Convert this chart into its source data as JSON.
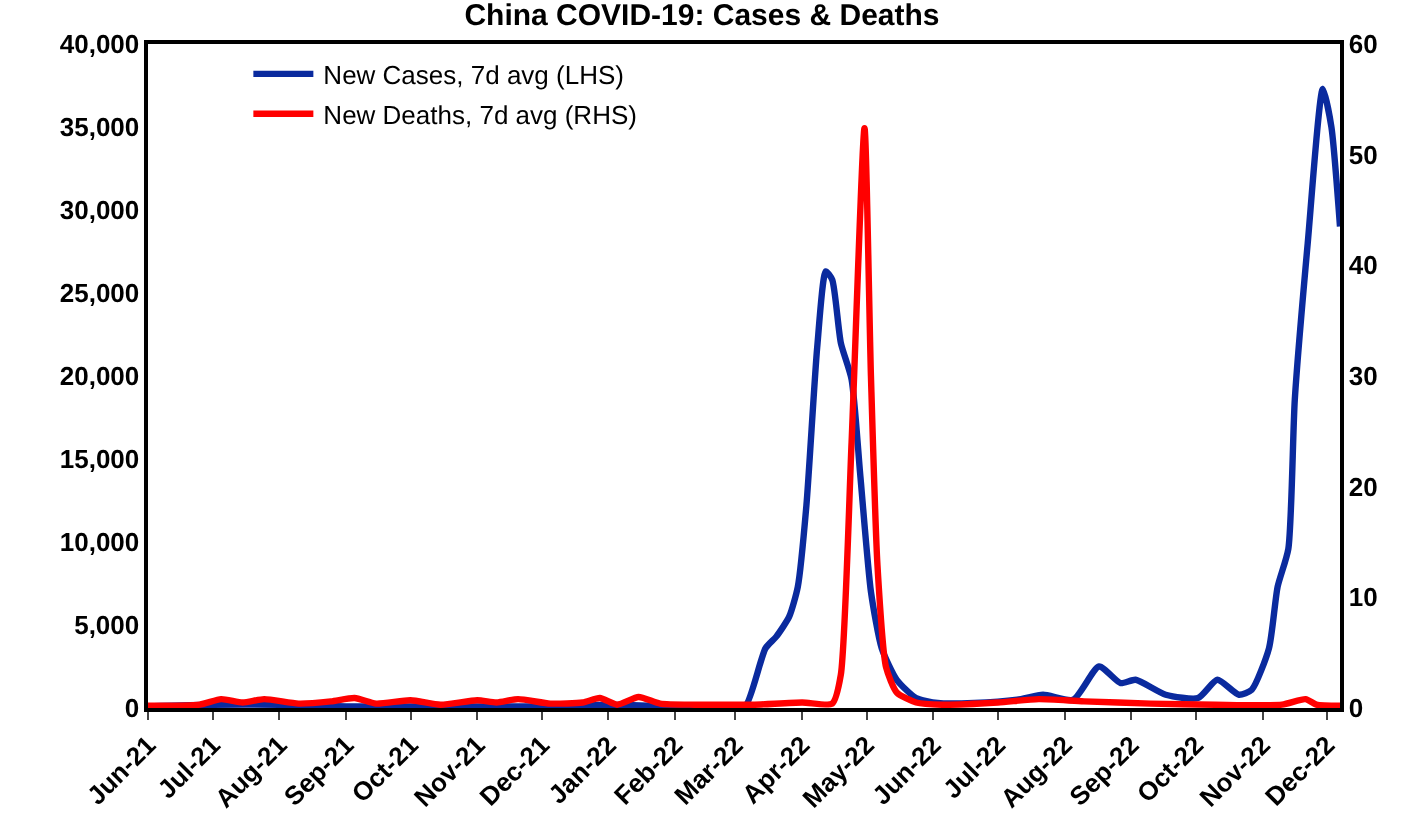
{
  "chart_data": {
    "type": "line",
    "title": "China COVID-19: Cases & Deaths",
    "series": [
      {
        "name": "New Cases, 7d avg (LHS)",
        "color": "#0a2a9e",
        "axis": "y",
        "x": [
          "2021-06-01",
          "2021-07-01",
          "2021-08-01",
          "2021-09-01",
          "2021-10-01",
          "2021-11-01",
          "2021-12-01",
          "2022-01-01",
          "2022-02-01",
          "2022-03-01",
          "2022-03-06",
          "2022-03-15",
          "2022-03-20",
          "2022-03-26",
          "2022-03-30",
          "2022-04-03",
          "2022-04-08",
          "2022-04-12",
          "2022-04-15",
          "2022-04-19",
          "2022-04-24",
          "2022-04-28",
          "2022-05-03",
          "2022-05-08",
          "2022-05-15",
          "2022-05-24",
          "2022-06-03",
          "2022-06-20",
          "2022-07-10",
          "2022-07-22",
          "2022-08-05",
          "2022-08-17",
          "2022-08-27",
          "2022-09-03",
          "2022-09-17",
          "2022-10-02",
          "2022-10-11",
          "2022-10-21",
          "2022-10-27",
          "2022-11-04",
          "2022-11-08",
          "2022-11-13",
          "2022-11-16",
          "2022-11-22",
          "2022-11-29",
          "2022-12-03",
          "2022-12-07"
        ],
        "values": [
          100,
          200,
          200,
          100,
          100,
          100,
          100,
          200,
          100,
          100,
          200,
          3600,
          4300,
          5500,
          7300,
          12200,
          21700,
          26300,
          25800,
          22000,
          19800,
          14100,
          7000,
          3600,
          1700,
          600,
          300,
          300,
          500,
          800,
          500,
          2500,
          1500,
          1700,
          800,
          600,
          1700,
          800,
          1100,
          3600,
          7300,
          9600,
          18600,
          28000,
          37300,
          35000,
          29000
        ]
      },
      {
        "name": "New Deaths, 7d avg (RHS)",
        "color": "#ff0000",
        "axis": "y2",
        "x": [
          "2021-06-01",
          "2021-06-25",
          "2021-07-05",
          "2021-07-15",
          "2021-07-25",
          "2021-08-10",
          "2021-08-25",
          "2021-09-05",
          "2021-09-15",
          "2021-10-01",
          "2021-10-15",
          "2021-11-01",
          "2021-11-10",
          "2021-11-20",
          "2021-12-05",
          "2021-12-20",
          "2021-12-28",
          "2022-01-05",
          "2022-01-15",
          "2022-01-25",
          "2022-02-10",
          "2022-02-25",
          "2022-03-10",
          "2022-04-01",
          "2022-04-15",
          "2022-04-19",
          "2022-04-24",
          "2022-04-30",
          "2022-05-03",
          "2022-05-06",
          "2022-05-10",
          "2022-05-15",
          "2022-05-24",
          "2022-06-05",
          "2022-07-01",
          "2022-07-20",
          "2022-08-10",
          "2022-09-10",
          "2022-10-10",
          "2022-11-10",
          "2022-11-21",
          "2022-11-26",
          "2022-12-07"
        ],
        "values": [
          0.2,
          0.3,
          0.8,
          0.5,
          0.8,
          0.4,
          0.6,
          0.9,
          0.4,
          0.7,
          0.3,
          0.7,
          0.5,
          0.8,
          0.4,
          0.5,
          0.9,
          0.3,
          1.0,
          0.4,
          0.3,
          0.3,
          0.3,
          0.5,
          0.4,
          3,
          24,
          52.4,
          30,
          13,
          3.7,
          1.4,
          0.5,
          0.3,
          0.5,
          0.8,
          0.6,
          0.4,
          0.3,
          0.3,
          0.8,
          0.3,
          0.2
        ]
      }
    ],
    "ylim": [
      0,
      40000
    ],
    "yticks": [
      {
        "value": 0,
        "label": "0"
      },
      {
        "value": 5000,
        "label": "5,000"
      },
      {
        "value": 10000,
        "label": "10,000"
      },
      {
        "value": 15000,
        "label": "15,000"
      },
      {
        "value": 20000,
        "label": "20,000"
      },
      {
        "value": 25000,
        "label": "25,000"
      },
      {
        "value": 30000,
        "label": "30,000"
      },
      {
        "value": 35000,
        "label": "35,000"
      },
      {
        "value": 40000,
        "label": "40,000"
      }
    ],
    "y2lim": [
      0,
      60
    ],
    "y2ticks": [
      0,
      10,
      20,
      30,
      40,
      50,
      60
    ],
    "xlim": [
      "2021-06-01",
      "2022-12-07"
    ],
    "xticks": [
      {
        "value": "2021-06-01",
        "label": "Jun-21"
      },
      {
        "value": "2021-07-01",
        "label": "Jul-21"
      },
      {
        "value": "2021-08-01",
        "label": "Aug-21"
      },
      {
        "value": "2021-09-01",
        "label": "Sep-21"
      },
      {
        "value": "2021-10-01",
        "label": "Oct-21"
      },
      {
        "value": "2021-11-01",
        "label": "Nov-21"
      },
      {
        "value": "2021-12-01",
        "label": "Dec-21"
      },
      {
        "value": "2022-01-01",
        "label": "Jan-22"
      },
      {
        "value": "2022-02-01",
        "label": "Feb-22"
      },
      {
        "value": "2022-03-01",
        "label": "Mar-22"
      },
      {
        "value": "2022-04-01",
        "label": "Apr-22"
      },
      {
        "value": "2022-05-01",
        "label": "May-22"
      },
      {
        "value": "2022-06-01",
        "label": "Jun-22"
      },
      {
        "value": "2022-07-01",
        "label": "Jul-22"
      },
      {
        "value": "2022-08-01",
        "label": "Aug-22"
      },
      {
        "value": "2022-09-01",
        "label": "Sep-22"
      },
      {
        "value": "2022-10-01",
        "label": "Oct-22"
      },
      {
        "value": "2022-11-01",
        "label": "Nov-22"
      },
      {
        "value": "2022-12-01",
        "label": "Dec-22"
      }
    ],
    "legend": "top left",
    "marker": "none",
    "line_style": "solid"
  }
}
